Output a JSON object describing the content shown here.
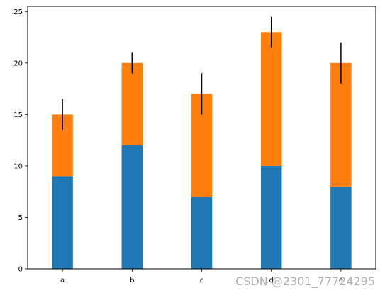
{
  "chart_data": {
    "type": "bar",
    "stacked": true,
    "categories": [
      "a",
      "b",
      "c",
      "d",
      "e"
    ],
    "series": [
      {
        "values": [
          9,
          12,
          7,
          10,
          8
        ],
        "color": "#1f77b4"
      },
      {
        "values": [
          6,
          8,
          10,
          13,
          12
        ],
        "color": "#ff7f0e",
        "error": [
          1.5,
          1,
          2,
          1.5,
          2
        ]
      }
    ],
    "ylim": [
      0,
      25.5
    ],
    "yticks": [
      0,
      5,
      10,
      15,
      20,
      25
    ],
    "grid": false,
    "legend": "none",
    "title": "",
    "xlabel": "",
    "ylabel": ""
  },
  "watermark": "CSDN @2301_77724295"
}
